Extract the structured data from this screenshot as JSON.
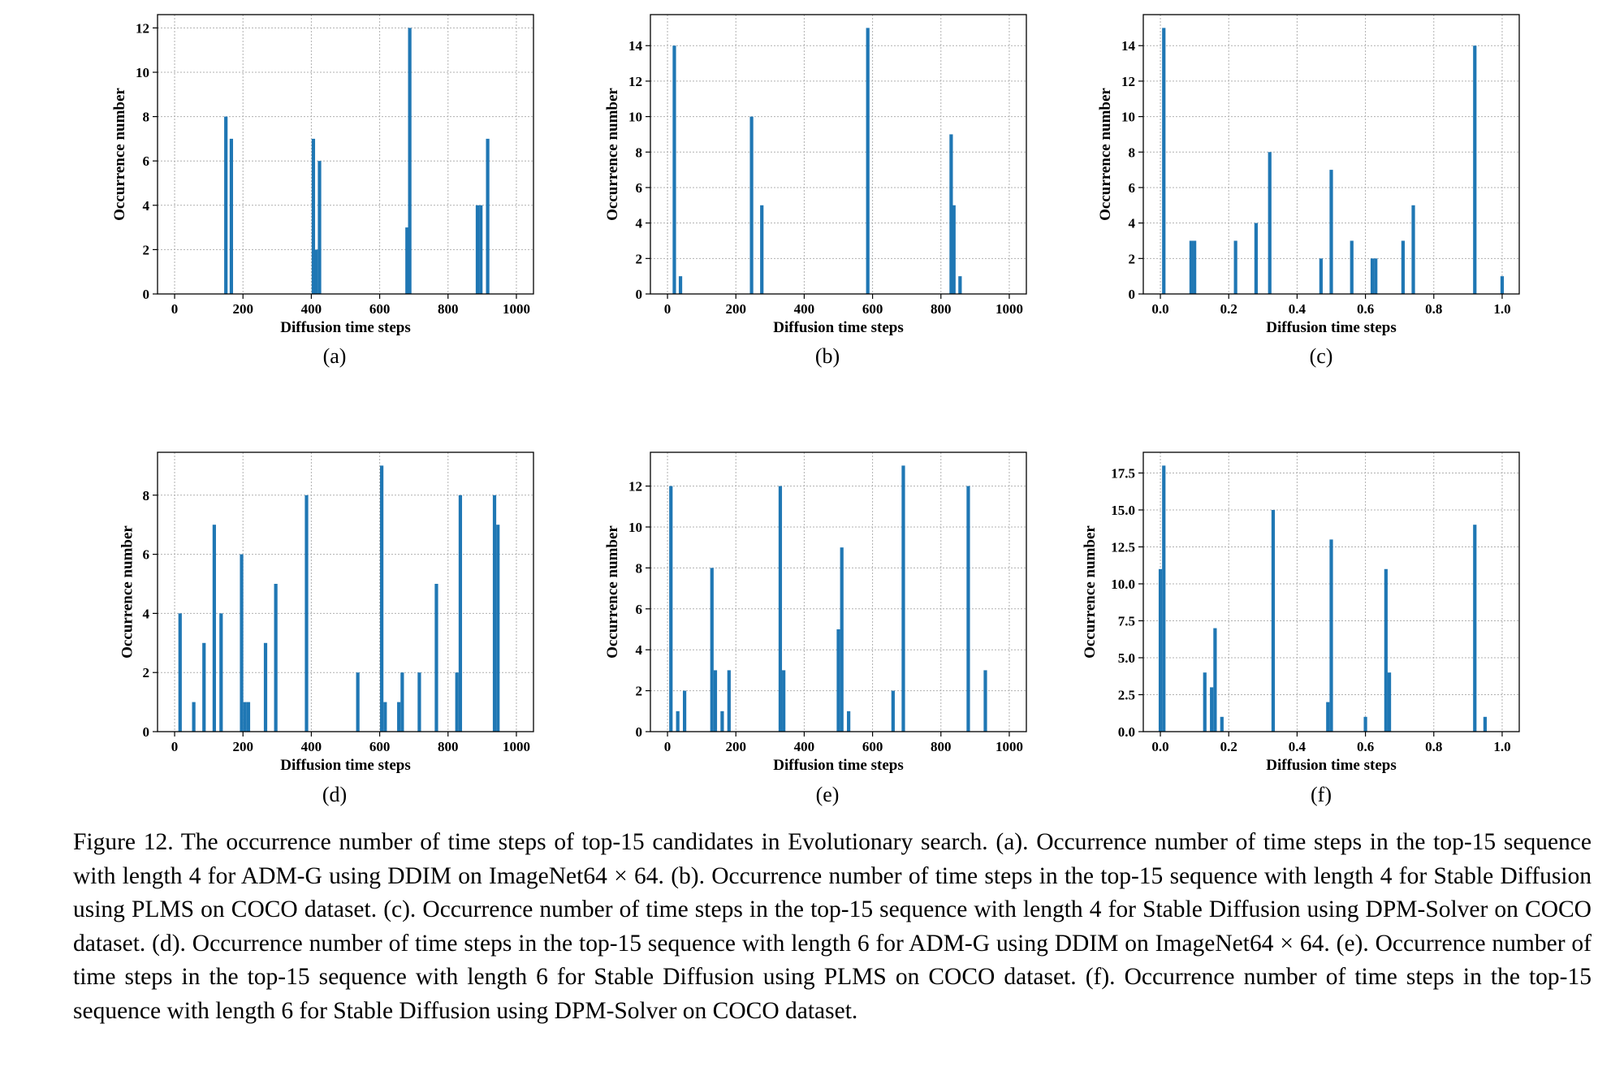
{
  "caption": "Figure 12. The occurrence number of time steps of top-15 candidates in Evolutionary search. (a). Occurrence number of time steps in the top-15 sequence with length 4 for ADM-G using DDIM on ImageNet64 × 64. (b). Occurrence number of time steps in the top-15 sequence with length 4 for Stable Diffusion using PLMS on COCO dataset. (c). Occurrence number of time steps in the top-15 sequence with length 4 for Stable Diffusion using DPM-Solver on COCO dataset. (d). Occurrence number of time steps in the top-15 sequence with length 6 for ADM-G using DDIM on ImageNet64 × 64. (e). Occurrence number of time steps in the top-15 sequence with length 6 for Stable Diffusion using PLMS on COCO dataset. (f). Occurrence number of time steps in the top-15 sequence with length 6 for Stable Diffusion using DPM-Solver on COCO dataset.",
  "colors": {
    "bar": "#1f77b4",
    "grid": "#b0b0b0",
    "axis": "#000000"
  },
  "chart_data": [
    {
      "id": "a",
      "panel_label": "(a)",
      "type": "bar",
      "xlabel": "Diffusion time steps",
      "ylabel": "Occurrence number",
      "xlim": [
        -50,
        1050
      ],
      "ylim": [
        0,
        12.6
      ],
      "xticks": [
        0,
        200,
        400,
        600,
        800,
        1000
      ],
      "xtick_labels": [
        "0",
        "200",
        "400",
        "600",
        "800",
        "1000"
      ],
      "yticks": [
        0,
        2,
        4,
        6,
        8,
        10,
        12
      ],
      "ytick_labels": [
        "0",
        "2",
        "4",
        "6",
        "8",
        "10",
        "12"
      ],
      "bar_width": 10,
      "grid": true,
      "x": [
        150,
        166,
        406,
        414,
        424,
        680,
        688,
        886,
        896,
        916
      ],
      "values": [
        8,
        7,
        7,
        2,
        6,
        3,
        12,
        4,
        4,
        7
      ]
    },
    {
      "id": "b",
      "panel_label": "(b)",
      "type": "bar",
      "xlabel": "Diffusion time steps",
      "ylabel": "Occurrence number",
      "xlim": [
        -50,
        1050
      ],
      "ylim": [
        0,
        15.75
      ],
      "xticks": [
        0,
        200,
        400,
        600,
        800,
        1000
      ],
      "xtick_labels": [
        "0",
        "200",
        "400",
        "600",
        "800",
        "1000"
      ],
      "yticks": [
        0,
        2,
        4,
        6,
        8,
        10,
        12,
        14
      ],
      "ytick_labels": [
        "0",
        "2",
        "4",
        "6",
        "8",
        "10",
        "12",
        "14"
      ],
      "bar_width": 10,
      "grid": true,
      "x": [
        20,
        38,
        246,
        276,
        586,
        830,
        838,
        856
      ],
      "values": [
        14,
        1,
        10,
        5,
        15,
        9,
        5,
        1
      ]
    },
    {
      "id": "c",
      "panel_label": "(c)",
      "type": "bar",
      "xlabel": "Diffusion time steps",
      "ylabel": "Occurrence number",
      "xlim": [
        -0.05,
        1.05
      ],
      "ylim": [
        0,
        15.75
      ],
      "xticks": [
        0.0,
        0.2,
        0.4,
        0.6,
        0.8,
        1.0
      ],
      "xtick_labels": [
        "0.0",
        "0.2",
        "0.4",
        "0.6",
        "0.8",
        "1.0"
      ],
      "yticks": [
        0,
        2,
        4,
        6,
        8,
        10,
        12,
        14
      ],
      "ytick_labels": [
        "0",
        "2",
        "4",
        "6",
        "8",
        "10",
        "12",
        "14"
      ],
      "bar_width": 0.01,
      "grid": true,
      "x": [
        0.01,
        0.09,
        0.1,
        0.22,
        0.28,
        0.32,
        0.47,
        0.5,
        0.56,
        0.62,
        0.63,
        0.71,
        0.74,
        0.92,
        1.0
      ],
      "values": [
        15,
        3,
        3,
        3,
        4,
        8,
        2,
        7,
        3,
        2,
        2,
        3,
        5,
        14,
        1
      ]
    },
    {
      "id": "d",
      "panel_label": "(d)",
      "type": "bar",
      "xlabel": "Diffusion time steps",
      "ylabel": "Occurrence number",
      "xlim": [
        -50,
        1050
      ],
      "ylim": [
        0,
        9.45
      ],
      "xticks": [
        0,
        200,
        400,
        600,
        800,
        1000
      ],
      "xtick_labels": [
        "0",
        "200",
        "400",
        "600",
        "800",
        "1000"
      ],
      "yticks": [
        0,
        2,
        4,
        6,
        8
      ],
      "ytick_labels": [
        "0",
        "2",
        "4",
        "6",
        "8"
      ],
      "bar_width": 10,
      "grid": true,
      "x": [
        16,
        56,
        86,
        116,
        136,
        196,
        206,
        216,
        266,
        296,
        386,
        536,
        606,
        616,
        656,
        666,
        716,
        766,
        826,
        836,
        936,
        946
      ],
      "values": [
        4,
        1,
        3,
        7,
        4,
        6,
        1,
        1,
        3,
        5,
        8,
        2,
        9,
        1,
        1,
        2,
        2,
        5,
        2,
        8,
        8,
        7
      ]
    },
    {
      "id": "e",
      "panel_label": "(e)",
      "type": "bar",
      "xlabel": "Diffusion time steps",
      "ylabel": "Occurrence number",
      "xlim": [
        -50,
        1050
      ],
      "ylim": [
        0,
        13.65
      ],
      "xticks": [
        0,
        200,
        400,
        600,
        800,
        1000
      ],
      "xtick_labels": [
        "0",
        "200",
        "400",
        "600",
        "800",
        "1000"
      ],
      "yticks": [
        0,
        2,
        4,
        6,
        8,
        10,
        12
      ],
      "ytick_labels": [
        "0",
        "2",
        "4",
        "6",
        "8",
        "10",
        "12"
      ],
      "bar_width": 10,
      "grid": true,
      "x": [
        10,
        30,
        50,
        130,
        140,
        160,
        180,
        330,
        340,
        500,
        510,
        530,
        660,
        690,
        880,
        930
      ],
      "values": [
        12,
        1,
        2,
        8,
        3,
        1,
        3,
        12,
        3,
        5,
        9,
        1,
        2,
        13,
        12,
        3
      ]
    },
    {
      "id": "f",
      "panel_label": "(f)",
      "type": "bar",
      "xlabel": "Diffusion time steps",
      "ylabel": "Occurrence number",
      "xlim": [
        -0.05,
        1.05
      ],
      "ylim": [
        0,
        18.9
      ],
      "xticks": [
        0.0,
        0.2,
        0.4,
        0.6,
        0.8,
        1.0
      ],
      "xtick_labels": [
        "0.0",
        "0.2",
        "0.4",
        "0.6",
        "0.8",
        "1.0"
      ],
      "yticks": [
        0.0,
        2.5,
        5.0,
        7.5,
        10.0,
        12.5,
        15.0,
        17.5
      ],
      "ytick_labels": [
        "0.0",
        "2.5",
        "5.0",
        "7.5",
        "10.0",
        "12.5",
        "15.0",
        "17.5"
      ],
      "bar_width": 0.01,
      "grid": true,
      "x": [
        0.0,
        0.01,
        0.13,
        0.15,
        0.16,
        0.18,
        0.33,
        0.49,
        0.5,
        0.6,
        0.66,
        0.67,
        0.92,
        0.95
      ],
      "values": [
        11,
        18,
        4,
        3,
        7,
        1,
        15,
        2,
        13,
        1,
        11,
        4,
        14,
        1
      ]
    }
  ]
}
